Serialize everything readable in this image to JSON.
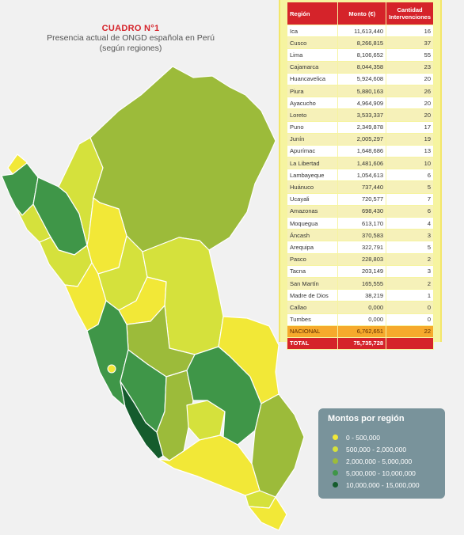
{
  "title": {
    "main": "CUADRO N°1",
    "subtitle_line1": "Presencia actual de ONGD española en Perú",
    "subtitle_line2": "(según regiones)"
  },
  "table": {
    "headers": {
      "region": "Región",
      "monto": "Monto (€)",
      "cantidad": "Cantidad Intervenciones"
    },
    "rows": [
      {
        "region": "Ica",
        "monto": "11,613,440",
        "cantidad": "16"
      },
      {
        "region": "Cusco",
        "monto": "8,266,815",
        "cantidad": "37"
      },
      {
        "region": "Lima",
        "monto": "8,106,652",
        "cantidad": "55"
      },
      {
        "region": "Cajamarca",
        "monto": "8,044,358",
        "cantidad": "23"
      },
      {
        "region": "Huancavelica",
        "monto": "5,924,608",
        "cantidad": "20"
      },
      {
        "region": "Piura",
        "monto": "5,880,163",
        "cantidad": "26"
      },
      {
        "region": "Ayacucho",
        "monto": "4,964,909",
        "cantidad": "20"
      },
      {
        "region": "Loreto",
        "monto": "3,533,337",
        "cantidad": "20"
      },
      {
        "region": "Puno",
        "monto": "2,349,878",
        "cantidad": "17"
      },
      {
        "region": "Junín",
        "monto": "2,005,297",
        "cantidad": "19"
      },
      {
        "region": "Apurímac",
        "monto": "1,648,686",
        "cantidad": "13"
      },
      {
        "region": "La Libertad",
        "monto": "1,481,606",
        "cantidad": "10"
      },
      {
        "region": "Lambayeque",
        "monto": "1,054,613",
        "cantidad": "6"
      },
      {
        "region": "Huánuco",
        "monto": "737,440",
        "cantidad": "5"
      },
      {
        "region": "Ucayali",
        "monto": "720,577",
        "cantidad": "7"
      },
      {
        "region": "Amazonas",
        "monto": "698,430",
        "cantidad": "6"
      },
      {
        "region": "Moquegua",
        "monto": "613,170",
        "cantidad": "4"
      },
      {
        "region": "Áncash",
        "monto": "370,583",
        "cantidad": "3"
      },
      {
        "region": "Arequipa",
        "monto": "322,791",
        "cantidad": "5"
      },
      {
        "region": "Pasco",
        "monto": "228,803",
        "cantidad": "2"
      },
      {
        "region": "Tacna",
        "monto": "203,149",
        "cantidad": "3"
      },
      {
        "region": "San Martín",
        "monto": "165,555",
        "cantidad": "2"
      },
      {
        "region": "Madre de Dios",
        "monto": "38,219",
        "cantidad": "1"
      },
      {
        "region": "Callao",
        "monto": "0,000",
        "cantidad": "0"
      },
      {
        "region": "Tumbes",
        "monto": "0,000",
        "cantidad": "0"
      }
    ],
    "nacional": {
      "region": "NACIONAL",
      "monto": "6,762,651",
      "cantidad": "22"
    },
    "total": {
      "region": "TOTAL",
      "monto": "75,735,728",
      "cantidad": ""
    }
  },
  "legend": {
    "title": "Montos por región",
    "items": [
      {
        "label": "0 - 500,000",
        "color": "#f2e837"
      },
      {
        "label": "500,000 - 2,000,000",
        "color": "#d5e13c"
      },
      {
        "label": "2,000,000 - 5,000,000",
        "color": "#9cbb3a"
      },
      {
        "label": "5,000,000 - 10,000,000",
        "color": "#3f9648"
      },
      {
        "label": "10,000,000 - 15,000,000",
        "color": "#155c2d"
      }
    ]
  },
  "colors": {
    "accent_red": "#d5232a",
    "panel_yellow": "#f6f4a0",
    "legend_bg": "#79939b"
  }
}
